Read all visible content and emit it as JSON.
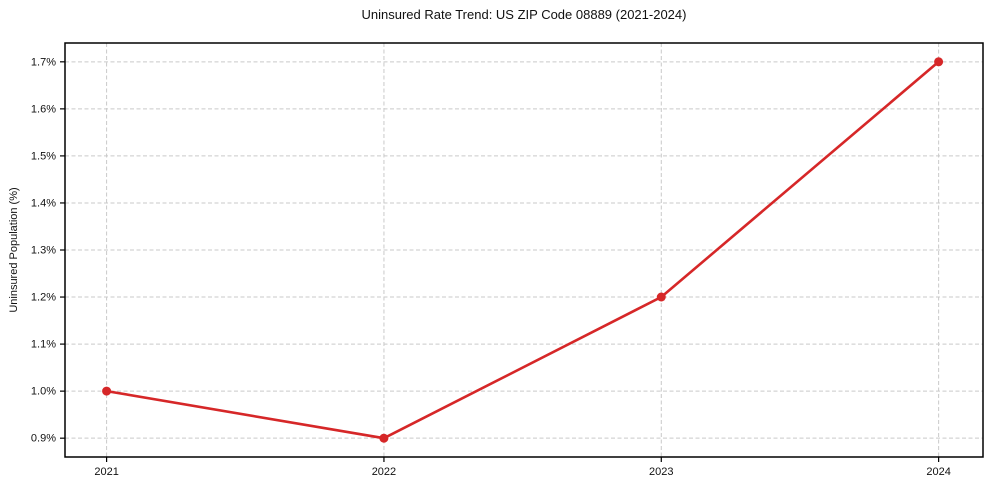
{
  "page": {
    "background": "#ffffff"
  },
  "chart_data": {
    "type": "line",
    "title": "Uninsured Rate Trend: US ZIP Code 08889 (2021-2024)",
    "xlabel": "",
    "ylabel": "Uninsured Population (%)",
    "x": [
      2021,
      2022,
      2023,
      2024
    ],
    "values": [
      1.0,
      0.9,
      1.2,
      1.7
    ],
    "xlim": [
      2020.85,
      2024.16
    ],
    "ylim": [
      0.86,
      1.74
    ],
    "xticks": [
      {
        "value": 2021,
        "label": "2021"
      },
      {
        "value": 2022,
        "label": "2022"
      },
      {
        "value": 2023,
        "label": "2023"
      },
      {
        "value": 2024,
        "label": "2024"
      }
    ],
    "yticks": [
      {
        "value": 0.9,
        "label": "0.9%"
      },
      {
        "value": 1.0,
        "label": "1.0%"
      },
      {
        "value": 1.1,
        "label": "1.1%"
      },
      {
        "value": 1.2,
        "label": "1.2%"
      },
      {
        "value": 1.3,
        "label": "1.3%"
      },
      {
        "value": 1.4,
        "label": "1.4%"
      },
      {
        "value": 1.5,
        "label": "1.5%"
      },
      {
        "value": 1.6,
        "label": "1.6%"
      },
      {
        "value": 1.7,
        "label": "1.7%"
      }
    ],
    "grid": true,
    "grid_style": "dashed",
    "legend": "none",
    "line_color": "#d62728",
    "marker": "circle",
    "grid_color": "#c9c9c9",
    "axis_color": "#000000"
  }
}
